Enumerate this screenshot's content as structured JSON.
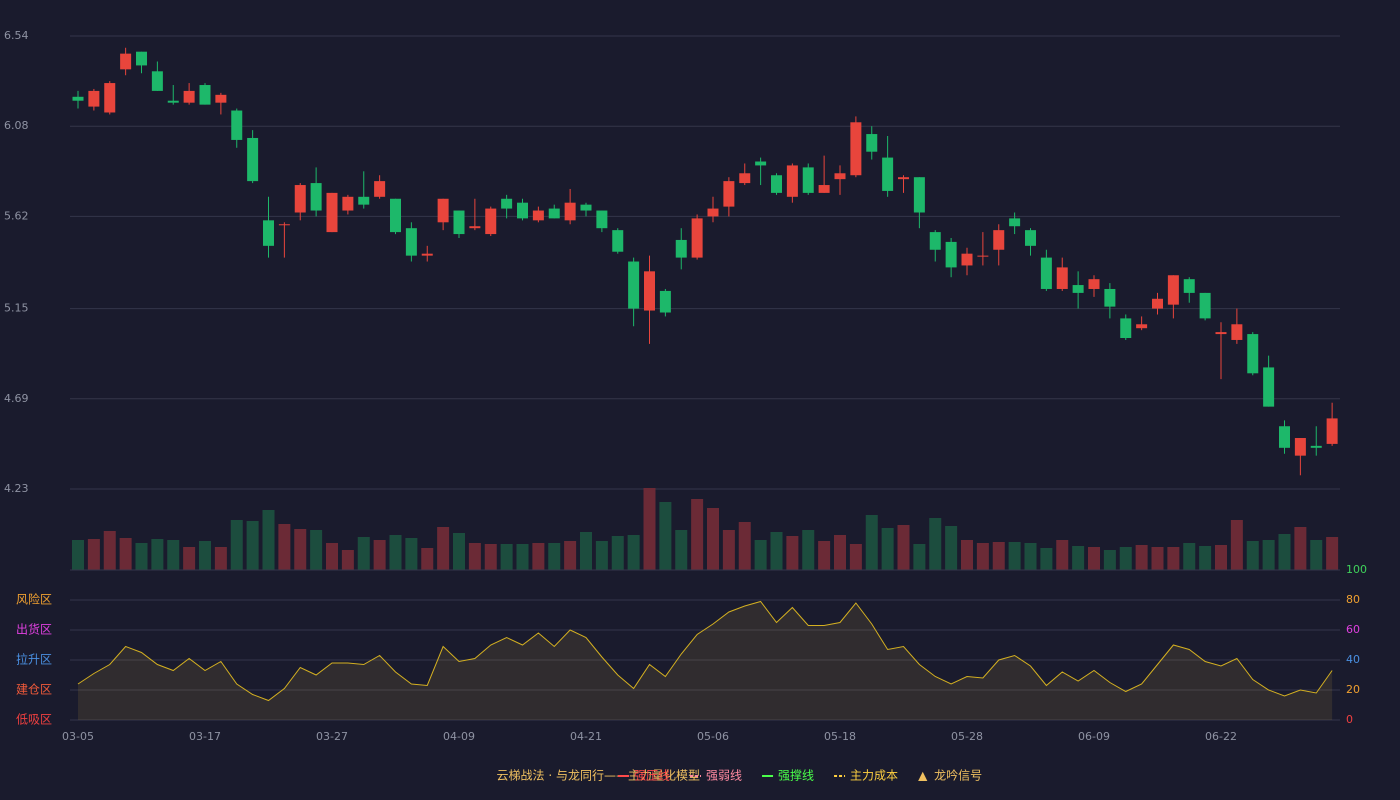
{
  "chart_data": [
    {
      "type": "candlestick",
      "categories": [
        "03-05",
        null,
        null,
        null,
        null,
        null,
        null,
        null,
        "03-17",
        null,
        null,
        null,
        null,
        null,
        null,
        null,
        "03-27",
        null,
        null,
        null,
        null,
        null,
        null,
        null,
        "04-09",
        null,
        null,
        null,
        null,
        null,
        null,
        null,
        "04-21",
        null,
        null,
        null,
        null,
        null,
        null,
        null,
        "05-06",
        null,
        null,
        null,
        null,
        null,
        null,
        null,
        "05-18",
        null,
        null,
        null,
        null,
        null,
        null,
        null,
        "05-28",
        null,
        null,
        null,
        null,
        null,
        null,
        null,
        "06-09",
        null,
        null,
        null,
        null,
        null,
        null,
        null,
        "06-22",
        null,
        null,
        null,
        null,
        null,
        null,
        null
      ],
      "open": [
        6.23,
        6.18,
        6.15,
        6.37,
        6.46,
        6.36,
        6.21,
        6.2,
        6.29,
        6.2,
        6.16,
        6.02,
        5.6,
        5.58,
        5.64,
        5.79,
        5.54,
        5.65,
        5.72,
        5.72,
        5.71,
        5.56,
        5.42,
        5.59,
        5.65,
        5.56,
        5.53,
        5.71,
        5.69,
        5.6,
        5.66,
        5.6,
        5.68,
        5.65,
        5.55,
        5.39,
        5.14,
        5.24,
        5.5,
        5.41,
        5.62,
        5.67,
        5.79,
        5.9,
        5.83,
        5.72,
        5.87,
        5.74,
        5.81,
        5.83,
        6.04,
        5.92,
        5.81,
        5.82,
        5.54,
        5.49,
        5.37,
        5.42,
        5.45,
        5.61,
        5.55,
        5.41,
        5.25,
        5.27,
        5.25,
        5.25,
        5.1,
        5.05,
        5.15,
        5.17,
        5.3,
        5.23,
        5.02,
        4.99,
        5.02,
        4.85,
        4.55,
        4.4,
        4.45,
        4.46
      ],
      "high": [
        6.26,
        6.27,
        6.31,
        6.48,
        6.46,
        6.41,
        6.29,
        6.3,
        6.3,
        6.25,
        6.17,
        6.06,
        5.72,
        5.59,
        5.79,
        5.87,
        5.74,
        5.73,
        5.85,
        5.83,
        5.71,
        5.59,
        5.47,
        5.71,
        5.65,
        5.71,
        5.67,
        5.73,
        5.71,
        5.67,
        5.68,
        5.76,
        5.69,
        5.65,
        5.56,
        5.41,
        5.42,
        5.25,
        5.56,
        5.63,
        5.72,
        5.82,
        5.89,
        5.92,
        5.84,
        5.89,
        5.89,
        5.93,
        5.88,
        6.13,
        6.08,
        6.03,
        5.83,
        5.82,
        5.55,
        5.51,
        5.46,
        5.54,
        5.58,
        5.64,
        5.56,
        5.45,
        5.41,
        5.34,
        5.32,
        5.28,
        5.12,
        5.11,
        5.23,
        5.32,
        5.31,
        5.23,
        5.08,
        5.15,
        5.03,
        4.91,
        4.58,
        4.49,
        4.55,
        4.67
      ],
      "low": [
        6.17,
        6.16,
        6.14,
        6.34,
        6.35,
        6.26,
        6.19,
        6.19,
        6.19,
        6.14,
        5.97,
        5.79,
        5.41,
        5.41,
        5.6,
        5.62,
        5.54,
        5.63,
        5.66,
        5.71,
        5.53,
        5.39,
        5.39,
        5.55,
        5.51,
        5.55,
        5.52,
        5.61,
        5.6,
        5.59,
        5.61,
        5.58,
        5.62,
        5.54,
        5.43,
        5.06,
        4.97,
        5.11,
        5.35,
        5.4,
        5.59,
        5.62,
        5.78,
        5.78,
        5.73,
        5.69,
        5.73,
        5.74,
        5.73,
        5.82,
        5.91,
        5.72,
        5.74,
        5.56,
        5.39,
        5.31,
        5.32,
        5.37,
        5.37,
        5.53,
        5.42,
        5.24,
        5.24,
        5.15,
        5.21,
        5.1,
        4.99,
        5.04,
        5.12,
        5.1,
        5.18,
        5.09,
        4.79,
        4.97,
        4.81,
        4.65,
        4.41,
        4.3,
        4.4,
        4.45
      ],
      "close": [
        6.21,
        6.26,
        6.3,
        6.45,
        6.39,
        6.26,
        6.2,
        6.26,
        6.19,
        6.24,
        6.01,
        5.8,
        5.47,
        5.58,
        5.78,
        5.65,
        5.74,
        5.72,
        5.68,
        5.8,
        5.54,
        5.42,
        5.43,
        5.71,
        5.53,
        5.57,
        5.66,
        5.66,
        5.61,
        5.65,
        5.61,
        5.69,
        5.65,
        5.56,
        5.44,
        5.15,
        5.34,
        5.13,
        5.41,
        5.61,
        5.66,
        5.8,
        5.84,
        5.88,
        5.74,
        5.88,
        5.74,
        5.78,
        5.84,
        6.1,
        5.95,
        5.75,
        5.82,
        5.64,
        5.45,
        5.36,
        5.43,
        5.42,
        5.55,
        5.57,
        5.47,
        5.25,
        5.36,
        5.23,
        5.3,
        5.16,
        5.0,
        5.07,
        5.2,
        5.32,
        5.23,
        5.1,
        5.03,
        5.07,
        4.82,
        4.65,
        4.44,
        4.49,
        4.44,
        4.59
      ],
      "up_color": "#e8453c",
      "down_color": "#1db86a",
      "ylim": [
        4.23,
        6.54
      ],
      "yticks": [
        6.54,
        6.08,
        5.62,
        5.15,
        4.69,
        4.23
      ],
      "grid": true
    },
    {
      "type": "bar",
      "values": [
        30,
        31,
        39,
        32,
        27,
        31,
        30,
        23,
        29,
        23,
        50,
        49,
        60,
        46,
        41,
        40,
        27,
        20,
        33,
        30,
        35,
        32,
        22,
        43,
        37,
        27,
        26,
        26,
        26,
        27,
        27,
        29,
        38,
        29,
        34,
        35,
        82,
        68,
        40,
        71,
        62,
        40,
        48,
        30,
        38,
        34,
        40,
        29,
        35,
        26,
        55,
        42,
        45,
        26,
        52,
        44,
        30,
        27,
        28,
        28,
        27,
        22,
        30,
        24,
        23,
        20,
        23,
        25,
        23,
        23,
        27,
        24,
        25,
        50,
        29,
        30,
        36,
        43,
        30,
        33
      ],
      "up_color": "#6b2a36",
      "down_color": "#1c4d3e",
      "ylim": [
        0,
        82
      ]
    },
    {
      "type": "line",
      "values": [
        24,
        31,
        37,
        49,
        45,
        37,
        33,
        41,
        33,
        39,
        24,
        17,
        13,
        21,
        35,
        30,
        38,
        38,
        37,
        43,
        32,
        24,
        23,
        49,
        39,
        41,
        50,
        55,
        50,
        58,
        49,
        60,
        55,
        42,
        30,
        21,
        37,
        29,
        44,
        57,
        64,
        72,
        76,
        79,
        65,
        75,
        63,
        63,
        65,
        78,
        64,
        47,
        49,
        37,
        29,
        24,
        29,
        28,
        40,
        43,
        36,
        23,
        32,
        26,
        33,
        25,
        19,
        24,
        37,
        50,
        47,
        39,
        36,
        41,
        27,
        20,
        16,
        20,
        18,
        33
      ],
      "color": "#d4b021",
      "ylim": [
        0,
        100
      ],
      "yticks": [
        100,
        80,
        60,
        40,
        20,
        0
      ],
      "ytick_colors": [
        "#3ed35a",
        "#f0a030",
        "#e040e0",
        "#4a90e2",
        "#f0a030",
        "#f04040"
      ],
      "zones": [
        {
          "value": 80,
          "label": "风险区",
          "color": "#f0a030"
        },
        {
          "value": 60,
          "label": "出货区",
          "color": "#e040e0"
        },
        {
          "value": 40,
          "label": "拉升区",
          "color": "#4a90e2"
        },
        {
          "value": 20,
          "label": "建仓区",
          "color": "#f05a3a"
        },
        {
          "value": 0,
          "label": "低吸区",
          "color": "#f04040"
        }
      ],
      "grid": true
    }
  ],
  "legend": {
    "title": "云梯战法 · 与龙同行——主力量化模型",
    "title_color": "#f0c060",
    "items": [
      {
        "label": "强压线",
        "color": "#ff4a4a",
        "style": "solid"
      },
      {
        "label": "强弱线",
        "color": "#ff8aa0",
        "style": "dashed"
      },
      {
        "label": "强撑线",
        "color": "#4aff4a",
        "style": "solid"
      },
      {
        "label": "主力成本",
        "color": "#ffd040",
        "style": "dashed"
      },
      {
        "label": "龙吟信号",
        "color": "#f0c060",
        "style": "marker",
        "marker": "▲"
      }
    ]
  }
}
